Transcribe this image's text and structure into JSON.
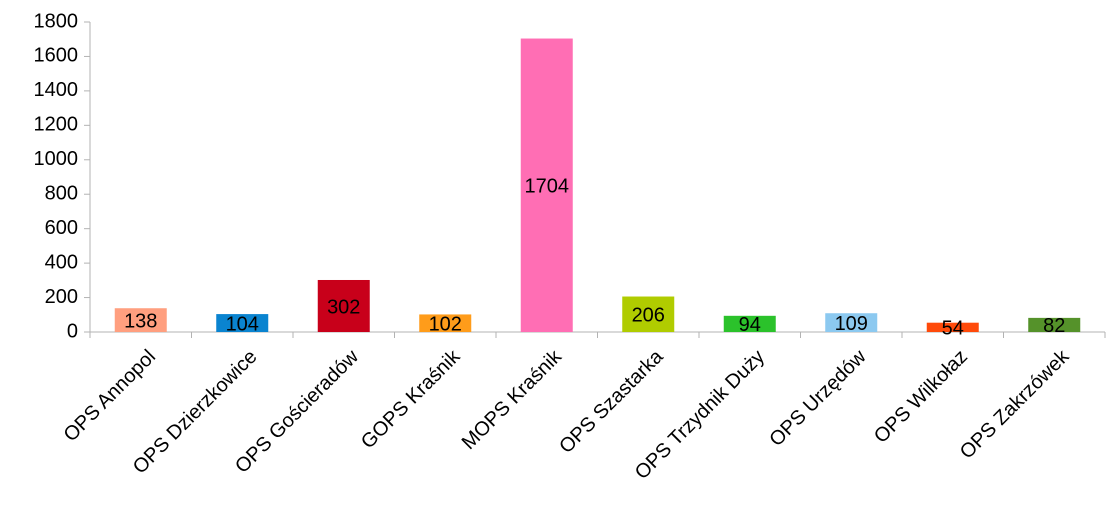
{
  "chart_data": {
    "type": "bar",
    "categories": [
      "OPS Annopol",
      "OPS Dzierzkowice",
      "OPS Gościeradów",
      "GOPS Kraśnik",
      "MOPS Kraśnik",
      "OPS Szastarka",
      "OPS Trzydnik Duży",
      "OPS Urzędów",
      "OPS Wilkołaz",
      "OPS Zakrzówek"
    ],
    "values": [
      138,
      104,
      302,
      102,
      1704,
      206,
      94,
      109,
      54,
      82
    ],
    "colors": [
      "#ff9f7f",
      "#0a84d0",
      "#c8001a",
      "#ff9c1a",
      "#ff6eb4",
      "#b0cc00",
      "#2bc22b",
      "#8cc9f0",
      "#ff4a0a",
      "#55922a"
    ],
    "ylim": [
      0,
      1800
    ],
    "yticks": [
      0,
      200,
      400,
      600,
      800,
      1000,
      1200,
      1400,
      1600,
      1800
    ],
    "grid": false
  }
}
